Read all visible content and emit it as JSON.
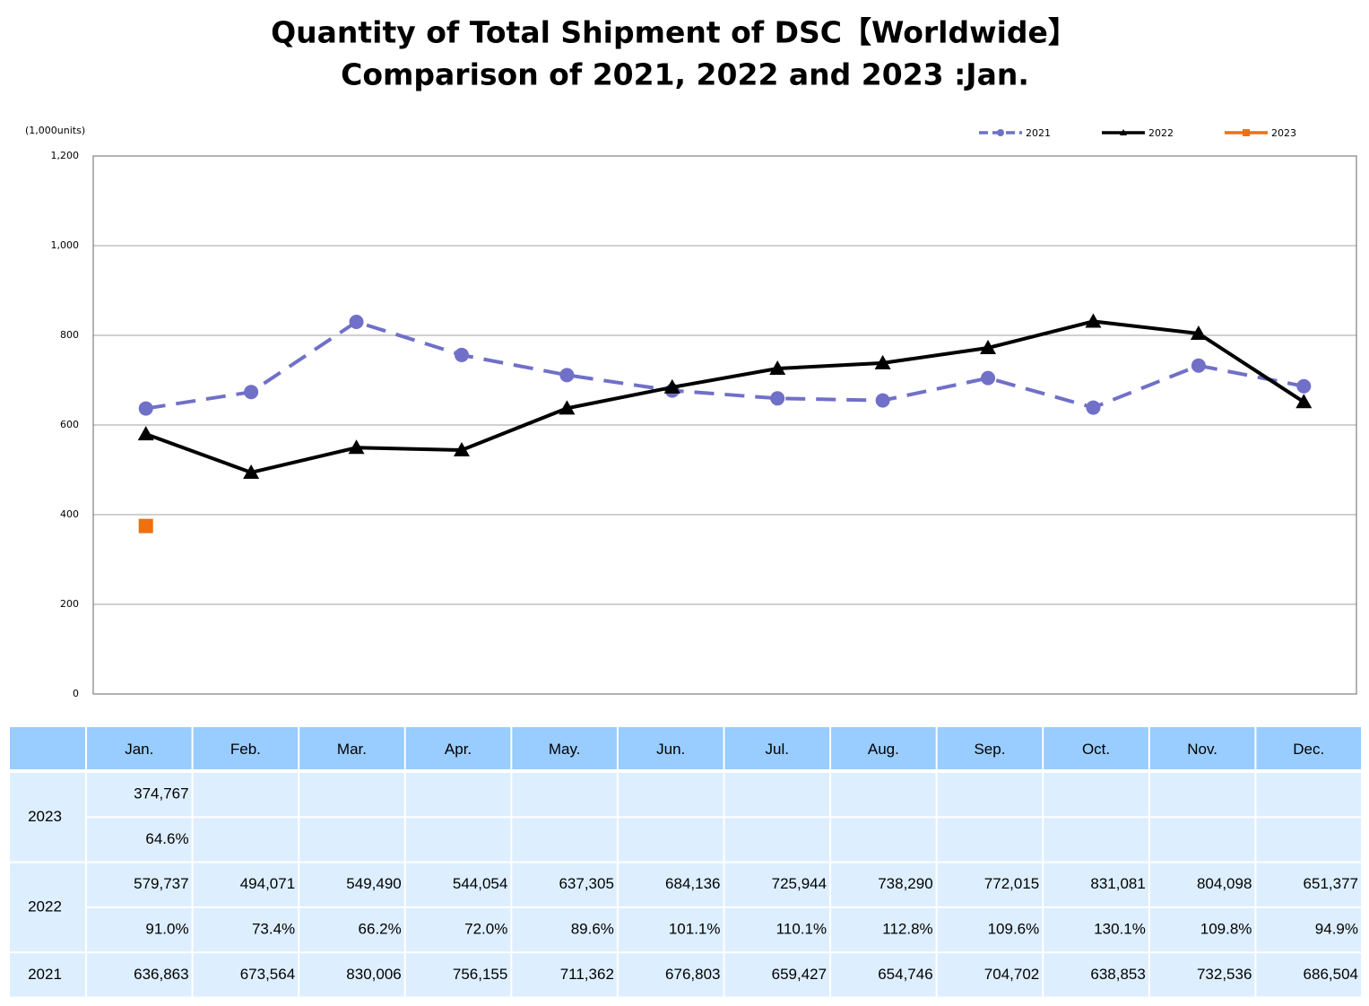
{
  "chart_data": {
    "type": "line",
    "title": "Quantity of Total Shipment of DSC【Worldwide】",
    "subtitle": "Comparison of 2021, 2022 and 2023 :Jan.",
    "y_label": "(1,000units)",
    "categories": [
      "Jan.",
      "Feb.",
      "Mar.",
      "Apr.",
      "May.",
      "Jun.",
      "Jul.",
      "Aug.",
      "Sep.",
      "Oct.",
      "Nov.",
      "Dec."
    ],
    "ylim": [
      0,
      1200
    ],
    "yticks": [
      0,
      200,
      400,
      600,
      800,
      {
        "value": 1000,
        "label": "1,000"
      },
      {
        "value": 1200,
        "label": "1,200"
      }
    ],
    "grid": true,
    "legend": "top-right",
    "series": [
      {
        "name": "2021",
        "color": "#7070c8",
        "dash": true,
        "marker": "circle",
        "values": [
          636.863,
          673.564,
          830.006,
          756.155,
          711.362,
          676.803,
          659.427,
          654.746,
          704.702,
          638.853,
          732.536,
          686.504
        ],
        "value_labels": [
          "636,863",
          "673,564",
          "830,006",
          "756,155",
          "711,362",
          "676,803",
          "659,427",
          "654,746",
          "704,702",
          "638,853",
          "732,536",
          "686,504"
        ]
      },
      {
        "name": "2022",
        "color": "#000000",
        "dash": false,
        "marker": "triangle",
        "values": [
          579.737,
          494.071,
          549.49,
          544.054,
          637.305,
          684.136,
          725.944,
          738.29,
          772.015,
          831.081,
          804.098,
          651.377
        ],
        "value_labels": [
          "579,737",
          "494,071",
          "549,490",
          "544,054",
          "637,305",
          "684,136",
          "725,944",
          "738,290",
          "772,015",
          "831,081",
          "804,098",
          "651,377"
        ]
      },
      {
        "name": "2023",
        "color": "#f07010",
        "dash": false,
        "marker": "square",
        "values": [
          374.767,
          null,
          null,
          null,
          null,
          null,
          null,
          null,
          null,
          null,
          null,
          null
        ],
        "value_labels": [
          "374,767",
          null,
          null,
          null,
          null,
          null,
          null,
          null,
          null,
          null,
          null,
          null
        ]
      }
    ]
  },
  "table": {
    "ratio_2023": [
      "64.6%"
    ],
    "ratio_2022": [
      "91.0%",
      "73.4%",
      "66.2%",
      "72.0%",
      "89.6%",
      "101.1%",
      "110.1%",
      "112.8%",
      "109.6%",
      "130.1%",
      "109.8%",
      "94.9%"
    ]
  }
}
